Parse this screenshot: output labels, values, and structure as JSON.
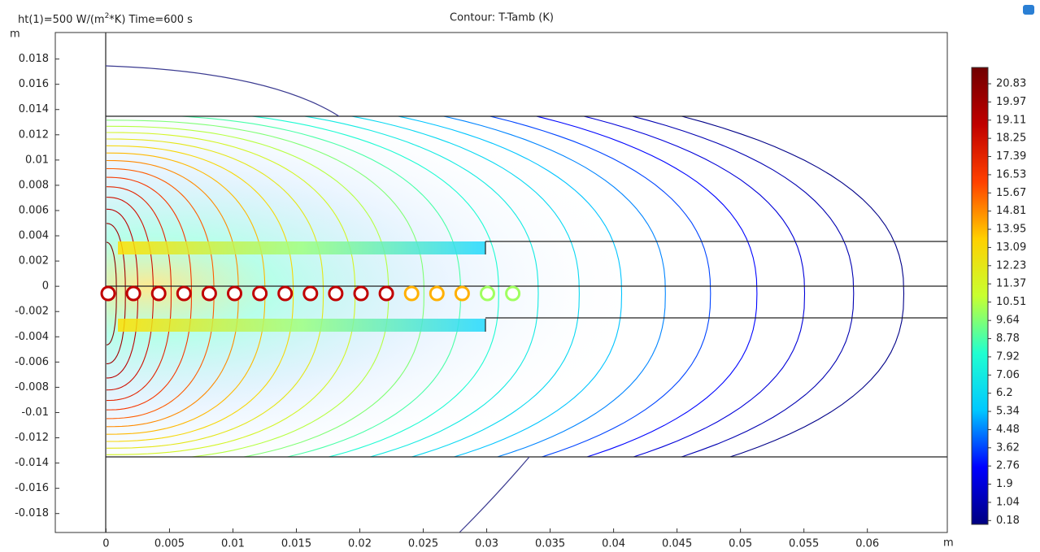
{
  "chart_data": {
    "type": "contour",
    "title": "Contour: T-Tamb (K)",
    "subtitle": {
      "pre": "ht(1)=500 W/(m",
      "sup": "2",
      "post": "*K) Time=600 s"
    },
    "x_label": "m",
    "y_label": "m",
    "xlim": [
      -0.004,
      0.0663
    ],
    "ylim": [
      -0.0195,
      0.0201
    ],
    "xticks": [
      0,
      0.005,
      0.01,
      0.015,
      0.02,
      0.025,
      0.03,
      0.035,
      0.04,
      0.045,
      0.05,
      0.055,
      0.06
    ],
    "yticks": [
      0.018,
      0.016,
      0.014,
      0.012,
      0.01,
      0.008,
      0.006,
      0.004,
      0.002,
      0,
      -0.002,
      -0.004,
      -0.006,
      -0.008,
      -0.01,
      -0.012,
      -0.014,
      -0.016,
      -0.018
    ],
    "colorbar": {
      "clim": [
        0,
        21.6
      ],
      "ticks": [
        20.83,
        19.97,
        19.11,
        18.25,
        17.39,
        16.53,
        15.67,
        14.81,
        13.95,
        13.09,
        12.23,
        11.37,
        10.51,
        9.64,
        8.78,
        7.92,
        7.06,
        6.2,
        5.34,
        4.48,
        3.62,
        2.76,
        1.9,
        1.04,
        0.18
      ],
      "colormap": [
        "#000080",
        "#0000ff",
        "#00c8ff",
        "#20ffd0",
        "#c8ff30",
        "#ffd000",
        "#ff4000",
        "#c00000",
        "#700000"
      ]
    }
  }
}
